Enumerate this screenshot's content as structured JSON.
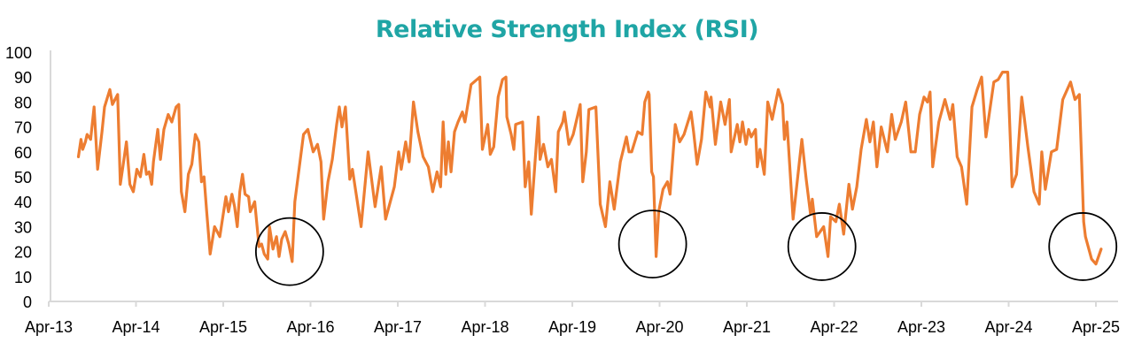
{
  "chart_data": {
    "type": "line",
    "title": "Relative Strength Index (RSI)",
    "xlabel": "",
    "ylabel": "",
    "ylim": [
      0,
      100
    ],
    "xlim": [
      2013.25,
      2025.25
    ],
    "grid": false,
    "yticks": [
      "0",
      "10",
      "20",
      "30",
      "40",
      "50",
      "60",
      "70",
      "80",
      "90",
      "100"
    ],
    "xticks": [
      "Apr-13",
      "Apr-14",
      "Apr-15",
      "Apr-16",
      "Apr-17",
      "Apr-18",
      "Apr-19",
      "Apr-20",
      "Apr-21",
      "Apr-22",
      "Apr-23",
      "Apr-24",
      "Apr-25"
    ],
    "colors": {
      "line": "#ED7D31",
      "title": "#1FA5A5",
      "axis": "#D9D9D9",
      "circle": "#000000"
    },
    "series": [
      {
        "name": "RSI",
        "points": [
          [
            2013.59,
            58
          ],
          [
            2013.62,
            65
          ],
          [
            2013.64,
            61
          ],
          [
            2013.67,
            64
          ],
          [
            2013.69,
            67
          ],
          [
            2013.73,
            65
          ],
          [
            2013.77,
            78
          ],
          [
            2013.81,
            53
          ],
          [
            2013.86,
            68
          ],
          [
            2013.89,
            78
          ],
          [
            2013.95,
            85
          ],
          [
            2013.98,
            79
          ],
          [
            2014.04,
            83
          ],
          [
            2014.07,
            47
          ],
          [
            2014.1,
            54
          ],
          [
            2014.14,
            64
          ],
          [
            2014.18,
            47
          ],
          [
            2014.22,
            44
          ],
          [
            2014.26,
            53
          ],
          [
            2014.3,
            50
          ],
          [
            2014.34,
            59
          ],
          [
            2014.37,
            51
          ],
          [
            2014.4,
            52
          ],
          [
            2014.43,
            47
          ],
          [
            2014.45,
            56
          ],
          [
            2014.5,
            69
          ],
          [
            2014.53,
            57
          ],
          [
            2014.57,
            69
          ],
          [
            2014.62,
            75
          ],
          [
            2014.66,
            72
          ],
          [
            2014.71,
            78
          ],
          [
            2014.74,
            79
          ],
          [
            2014.77,
            44
          ],
          [
            2014.81,
            36
          ],
          [
            2014.85,
            51
          ],
          [
            2014.89,
            55
          ],
          [
            2014.93,
            67
          ],
          [
            2014.97,
            64
          ],
          [
            2015.0,
            48
          ],
          [
            2015.03,
            50
          ],
          [
            2015.06,
            36
          ],
          [
            2015.1,
            19
          ],
          [
            2015.15,
            30
          ],
          [
            2015.21,
            26
          ],
          [
            2015.28,
            42
          ],
          [
            2015.31,
            36
          ],
          [
            2015.35,
            43
          ],
          [
            2015.38,
            38
          ],
          [
            2015.41,
            30
          ],
          [
            2015.44,
            44
          ],
          [
            2015.47,
            51
          ],
          [
            2015.5,
            43
          ],
          [
            2015.54,
            42
          ],
          [
            2015.56,
            36
          ],
          [
            2015.61,
            40
          ],
          [
            2015.66,
            22
          ],
          [
            2015.69,
            23
          ],
          [
            2015.72,
            19
          ],
          [
            2015.76,
            17
          ],
          [
            2015.78,
            30
          ],
          [
            2015.82,
            21
          ],
          [
            2015.86,
            26
          ],
          [
            2015.89,
            18
          ],
          [
            2015.92,
            25
          ],
          [
            2015.96,
            28
          ],
          [
            2016.0,
            23
          ],
          [
            2016.04,
            16
          ],
          [
            2016.07,
            40
          ],
          [
            2016.17,
            67
          ],
          [
            2016.22,
            69
          ],
          [
            2016.28,
            60
          ],
          [
            2016.33,
            63
          ],
          [
            2016.37,
            56
          ],
          [
            2016.4,
            33
          ],
          [
            2016.45,
            48
          ],
          [
            2016.5,
            57
          ],
          [
            2016.55,
            71
          ],
          [
            2016.58,
            78
          ],
          [
            2016.61,
            70
          ],
          [
            2016.65,
            78
          ],
          [
            2016.7,
            49
          ],
          [
            2016.73,
            53
          ],
          [
            2016.83,
            30
          ],
          [
            2016.91,
            60
          ],
          [
            2016.99,
            38
          ],
          [
            2017.06,
            54
          ],
          [
            2017.11,
            33
          ],
          [
            2017.21,
            46
          ],
          [
            2017.26,
            60
          ],
          [
            2017.29,
            53
          ],
          [
            2017.34,
            64
          ],
          [
            2017.38,
            56
          ],
          [
            2017.43,
            80
          ],
          [
            2017.48,
            68
          ],
          [
            2017.54,
            58
          ],
          [
            2017.6,
            54
          ],
          [
            2017.65,
            44
          ],
          [
            2017.7,
            52
          ],
          [
            2017.74,
            46
          ],
          [
            2017.77,
            72
          ],
          [
            2017.8,
            51
          ],
          [
            2017.83,
            64
          ],
          [
            2017.86,
            52
          ],
          [
            2017.9,
            68
          ],
          [
            2017.94,
            72
          ],
          [
            2017.99,
            76
          ],
          [
            2018.02,
            72
          ],
          [
            2018.09,
            87
          ],
          [
            2018.19,
            90
          ],
          [
            2018.22,
            61
          ],
          [
            2018.28,
            71
          ],
          [
            2018.31,
            59
          ],
          [
            2018.35,
            62
          ],
          [
            2018.4,
            82
          ],
          [
            2018.45,
            89
          ],
          [
            2018.49,
            90
          ],
          [
            2018.5,
            74
          ],
          [
            2018.55,
            67
          ],
          [
            2018.58,
            61
          ],
          [
            2018.6,
            71
          ],
          [
            2018.68,
            72
          ],
          [
            2018.71,
            46
          ],
          [
            2018.75,
            56
          ],
          [
            2018.78,
            35
          ],
          [
            2018.86,
            74
          ],
          [
            2018.88,
            57
          ],
          [
            2018.92,
            63
          ],
          [
            2018.97,
            54
          ],
          [
            2019.01,
            57
          ],
          [
            2019.06,
            44
          ],
          [
            2019.09,
            68
          ],
          [
            2019.14,
            72
          ],
          [
            2019.16,
            76
          ],
          [
            2019.21,
            63
          ],
          [
            2019.26,
            67
          ],
          [
            2019.34,
            79
          ],
          [
            2019.37,
            48
          ],
          [
            2019.41,
            60
          ],
          [
            2019.44,
            77
          ],
          [
            2019.52,
            78
          ],
          [
            2019.57,
            39
          ],
          [
            2019.63,
            30
          ],
          [
            2019.68,
            48
          ],
          [
            2019.73,
            37
          ],
          [
            2019.8,
            56
          ],
          [
            2019.87,
            66
          ],
          [
            2019.9,
            60
          ],
          [
            2019.93,
            60
          ],
          [
            2020.0,
            68
          ],
          [
            2020.05,
            67
          ],
          [
            2020.08,
            80
          ],
          [
            2020.12,
            84
          ],
          [
            2020.13,
            83
          ],
          [
            2020.16,
            52
          ],
          [
            2020.18,
            50
          ],
          [
            2020.21,
            18
          ],
          [
            2020.24,
            36
          ],
          [
            2020.29,
            45
          ],
          [
            2020.34,
            48
          ],
          [
            2020.37,
            43
          ],
          [
            2020.43,
            71
          ],
          [
            2020.48,
            64
          ],
          [
            2020.53,
            67
          ],
          [
            2020.61,
            76
          ],
          [
            2020.64,
            68
          ],
          [
            2020.68,
            55
          ],
          [
            2020.73,
            65
          ],
          [
            2020.78,
            84
          ],
          [
            2020.83,
            78
          ],
          [
            2020.84,
            82
          ],
          [
            2020.89,
            63
          ],
          [
            2020.95,
            80
          ],
          [
            2021.0,
            71
          ],
          [
            2021.05,
            81
          ],
          [
            2021.07,
            60
          ],
          [
            2021.14,
            71
          ],
          [
            2021.17,
            64
          ],
          [
            2021.2,
            72
          ],
          [
            2021.24,
            63
          ],
          [
            2021.27,
            69
          ],
          [
            2021.3,
            66
          ],
          [
            2021.35,
            69
          ],
          [
            2021.37,
            54
          ],
          [
            2021.4,
            61
          ],
          [
            2021.45,
            51
          ],
          [
            2021.49,
            80
          ],
          [
            2021.54,
            73
          ],
          [
            2021.61,
            85
          ],
          [
            2021.66,
            79
          ],
          [
            2021.68,
            65
          ],
          [
            2021.71,
            72
          ],
          [
            2021.78,
            33
          ],
          [
            2021.88,
            65
          ],
          [
            2021.93,
            49
          ],
          [
            2021.98,
            35
          ],
          [
            2022.0,
            41
          ],
          [
            2022.05,
            26
          ],
          [
            2022.13,
            30
          ],
          [
            2022.18,
            18
          ],
          [
            2022.21,
            34
          ],
          [
            2022.27,
            32
          ],
          [
            2022.31,
            39
          ],
          [
            2022.36,
            27
          ],
          [
            2022.42,
            47
          ],
          [
            2022.46,
            37
          ],
          [
            2022.51,
            46
          ],
          [
            2022.56,
            61
          ],
          [
            2022.62,
            73
          ],
          [
            2022.66,
            64
          ],
          [
            2022.7,
            72
          ],
          [
            2022.74,
            54
          ],
          [
            2022.79,
            70
          ],
          [
            2022.86,
            60
          ],
          [
            2022.91,
            75
          ],
          [
            2022.95,
            65
          ],
          [
            2023.02,
            72
          ],
          [
            2023.07,
            80
          ],
          [
            2023.13,
            60
          ],
          [
            2023.18,
            60
          ],
          [
            2023.23,
            75
          ],
          [
            2023.28,
            82
          ],
          [
            2023.32,
            80
          ],
          [
            2023.35,
            84
          ],
          [
            2023.38,
            54
          ],
          [
            2023.45,
            72
          ],
          [
            2023.52,
            81
          ],
          [
            2023.58,
            73
          ],
          [
            2023.61,
            79
          ],
          [
            2023.66,
            58
          ],
          [
            2023.71,
            54
          ],
          [
            2023.77,
            39
          ],
          [
            2023.83,
            78
          ],
          [
            2023.89,
            85
          ],
          [
            2023.94,
            90
          ],
          [
            2023.99,
            66
          ],
          [
            2024.08,
            88
          ],
          [
            2024.13,
            89
          ],
          [
            2024.18,
            92
          ],
          [
            2024.24,
            92
          ],
          [
            2024.29,
            46
          ],
          [
            2024.34,
            51
          ],
          [
            2024.4,
            82
          ],
          [
            2024.47,
            62
          ],
          [
            2024.54,
            44
          ],
          [
            2024.6,
            39
          ],
          [
            2024.63,
            60
          ],
          [
            2024.67,
            45
          ],
          [
            2024.74,
            60
          ],
          [
            2024.8,
            61
          ],
          [
            2024.87,
            81
          ],
          [
            2024.96,
            88
          ],
          [
            2025.01,
            81
          ],
          [
            2025.06,
            83
          ],
          [
            2025.11,
            32
          ],
          [
            2025.13,
            26
          ],
          [
            2025.2,
            17
          ],
          [
            2025.25,
            15
          ],
          [
            2025.28,
            18
          ],
          [
            2025.31,
            21
          ]
        ]
      }
    ],
    "annotations": [
      {
        "type": "circle",
        "x": 2016.01,
        "y": 20
      },
      {
        "type": "circle",
        "x": 2020.17,
        "y": 23
      },
      {
        "type": "circle",
        "x": 2022.11,
        "y": 22
      },
      {
        "type": "circle",
        "x": 2025.1,
        "y": 22
      }
    ]
  }
}
